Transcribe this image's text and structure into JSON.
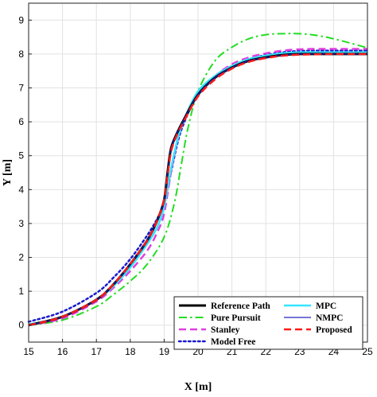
{
  "chart_data": {
    "type": "line",
    "title": "",
    "xlabel": "X [m]",
    "ylabel": "Y [m]",
    "xlim": [
      15,
      25
    ],
    "ylim": [
      -0.5,
      9.5
    ],
    "xticks": [
      15,
      16,
      17,
      18,
      19,
      20,
      21,
      22,
      23,
      24,
      25
    ],
    "yticks": [
      0,
      1,
      2,
      3,
      4,
      5,
      6,
      7,
      8,
      9
    ],
    "grid": true,
    "legend_position": "bottom-right",
    "series": [
      {
        "name": "Reference Path",
        "color": "#000000",
        "style": "solid",
        "width": 3,
        "x": [
          15,
          16,
          17,
          17.5,
          18,
          18.5,
          18.8,
          19,
          19.1,
          19.2,
          19.35,
          19.6,
          20,
          20.5,
          21,
          21.5,
          22,
          22.5,
          23,
          24,
          25
        ],
        "y": [
          0,
          0.25,
          0.75,
          1.2,
          1.8,
          2.5,
          3.1,
          3.7,
          4.5,
          5.2,
          5.6,
          6.1,
          6.8,
          7.3,
          7.6,
          7.8,
          7.9,
          7.97,
          8.0,
          8.0,
          8.0
        ]
      },
      {
        "name": "MPC",
        "color": "#33e6ff",
        "style": "solid",
        "width": 2.5,
        "x": [
          15,
          16,
          17,
          17.5,
          18,
          18.5,
          18.8,
          19,
          19.2,
          19.4,
          19.6,
          20,
          20.5,
          21,
          21.5,
          22,
          22.5,
          23,
          24,
          25
        ],
        "y": [
          0.02,
          0.25,
          0.75,
          1.15,
          1.7,
          2.4,
          2.9,
          3.5,
          4.6,
          5.5,
          6.1,
          6.9,
          7.35,
          7.65,
          7.85,
          7.95,
          8.02,
          8.05,
          8.05,
          8.05
        ]
      },
      {
        "name": "Pure Pursuit",
        "color": "#22dd22",
        "style": "dashdot",
        "width": 2,
        "x": [
          15,
          16,
          17,
          17.5,
          18,
          18.5,
          19,
          19.3,
          19.5,
          19.7,
          20,
          20.5,
          21,
          21.5,
          22,
          22.5,
          23,
          23.5,
          24,
          24.5,
          25
        ],
        "y": [
          0,
          0.15,
          0.55,
          0.9,
          1.3,
          1.8,
          2.6,
          3.6,
          4.7,
          5.8,
          6.9,
          7.8,
          8.2,
          8.45,
          8.57,
          8.6,
          8.6,
          8.55,
          8.45,
          8.32,
          8.18
        ]
      },
      {
        "name": "NMPC",
        "color": "#2222bb",
        "style": "solid",
        "width": 1.2,
        "x": [
          15,
          16,
          17,
          17.5,
          18,
          18.5,
          18.8,
          19,
          19.1,
          19.2,
          19.35,
          19.6,
          20,
          20.5,
          21,
          21.5,
          22,
          22.5,
          23,
          24,
          25
        ],
        "y": [
          0,
          0.25,
          0.75,
          1.2,
          1.8,
          2.5,
          3.1,
          3.7,
          4.5,
          5.2,
          5.6,
          6.1,
          6.8,
          7.3,
          7.6,
          7.8,
          7.9,
          7.97,
          8.0,
          8.0,
          8.0
        ]
      },
      {
        "name": "Stanley",
        "color": "#e040e0",
        "style": "dashed",
        "width": 2.5,
        "x": [
          15,
          16,
          17,
          17.5,
          18,
          18.5,
          18.8,
          19,
          19.2,
          19.4,
          19.6,
          20,
          20.5,
          21,
          21.5,
          22,
          22.5,
          23,
          23.5,
          24,
          25
        ],
        "y": [
          0,
          0.2,
          0.7,
          1.1,
          1.6,
          2.2,
          2.75,
          3.3,
          4.5,
          5.5,
          6.1,
          6.85,
          7.35,
          7.7,
          7.9,
          8.02,
          8.1,
          8.14,
          8.15,
          8.15,
          8.15
        ]
      },
      {
        "name": "Proposed",
        "color": "#ff1a1a",
        "style": "dashed",
        "width": 2.5,
        "x": [
          15,
          16,
          17,
          17.5,
          18,
          18.5,
          18.8,
          19,
          19.1,
          19.2,
          19.35,
          19.6,
          20,
          20.5,
          21,
          21.5,
          22,
          22.5,
          23,
          24,
          25
        ],
        "y": [
          0,
          0.25,
          0.75,
          1.2,
          1.8,
          2.5,
          3.1,
          3.7,
          4.4,
          5.1,
          5.55,
          6.05,
          6.75,
          7.25,
          7.57,
          7.77,
          7.88,
          7.95,
          7.98,
          8.0,
          8.0
        ]
      },
      {
        "name": "Model Free",
        "color": "#1a1acc",
        "style": "dotted",
        "width": 2.5,
        "x": [
          15,
          16,
          17,
          17.5,
          18,
          18.5,
          18.8,
          19,
          19.2,
          19.4,
          19.6,
          20,
          20.5,
          21,
          21.5,
          22,
          22.5,
          23,
          23.5,
          24,
          25
        ],
        "y": [
          0.1,
          0.4,
          0.95,
          1.4,
          1.95,
          2.65,
          3.15,
          3.6,
          4.5,
          5.4,
          6.0,
          6.85,
          7.35,
          7.65,
          7.85,
          7.97,
          8.05,
          8.09,
          8.1,
          8.1,
          8.1
        ]
      }
    ]
  }
}
